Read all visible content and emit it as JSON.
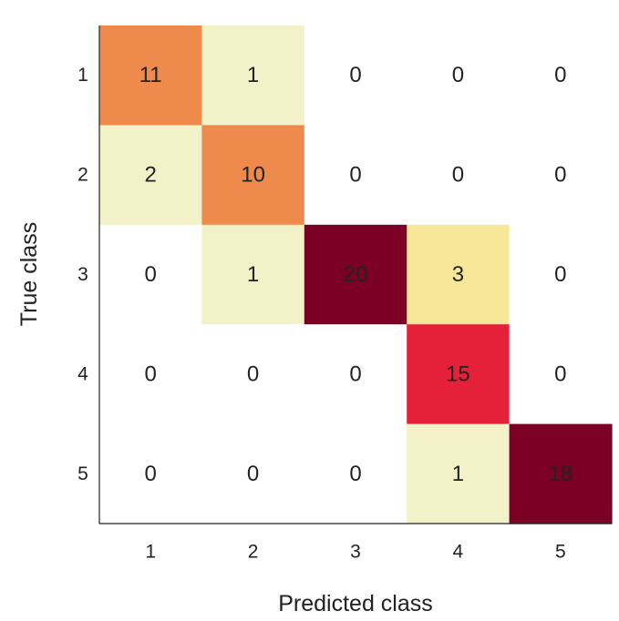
{
  "chart_data": {
    "type": "heatmap",
    "x_labels": [
      "1",
      "2",
      "3",
      "4",
      "5"
    ],
    "y_labels": [
      "1",
      "2",
      "3",
      "4",
      "5"
    ],
    "values": [
      [
        11,
        1,
        0,
        0,
        0
      ],
      [
        2,
        10,
        0,
        0,
        0
      ],
      [
        0,
        1,
        20,
        3,
        0
      ],
      [
        0,
        0,
        0,
        15,
        0
      ],
      [
        0,
        0,
        0,
        1,
        18
      ]
    ],
    "xlabel": "Predicted class",
    "ylabel": "True class",
    "color_scale": {
      "0": "#ffffff",
      "1": "#f2f1c7",
      "2": "#f2f1c7",
      "3": "#f7e899",
      "10": "#ee8a4b",
      "11": "#ee8a4b",
      "15": "#e5213a",
      "18": "#7c0026",
      "20": "#7c0026"
    }
  }
}
